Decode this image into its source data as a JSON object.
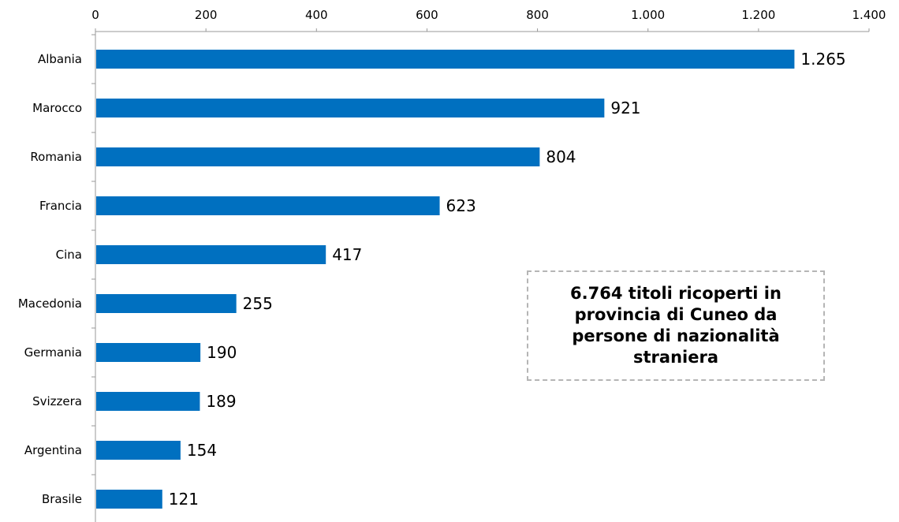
{
  "chart_data": {
    "type": "bar",
    "orientation": "horizontal",
    "categories": [
      "Albania",
      "Marocco",
      "Romania",
      "Francia",
      "Cina",
      "Macedonia",
      "Germania",
      "Svizzera",
      "Argentina",
      "Brasile"
    ],
    "values": [
      1265,
      921,
      804,
      623,
      417,
      255,
      190,
      189,
      154,
      121
    ],
    "value_labels": [
      "1.265",
      "921",
      "804",
      "623",
      "417",
      "255",
      "190",
      "189",
      "154",
      "121"
    ],
    "x_ticks": [
      "0",
      "200",
      "400",
      "600",
      "800",
      "1.000",
      "1.200",
      "1.400"
    ],
    "xlim": [
      0,
      1400
    ],
    "axis_position": "top",
    "grid": false,
    "bar_color": "#0070c0",
    "annotation": "6.764 titoli ricoperti in provincia di Cuneo da persone di nazionalità straniera"
  }
}
